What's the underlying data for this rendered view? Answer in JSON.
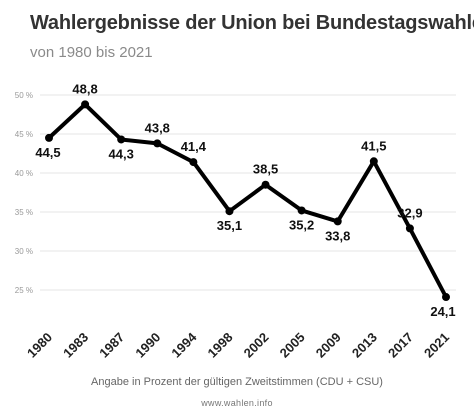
{
  "chart_data": {
    "type": "line",
    "title": "Wahlergebnisse der Union bei Bundestagswahlen",
    "subtitle": "von 1980 bis 2021",
    "categories": [
      "1980",
      "1983",
      "1987",
      "1990",
      "1994",
      "1998",
      "2002",
      "2005",
      "2009",
      "2013",
      "2017",
      "2021"
    ],
    "values": [
      44.5,
      48.8,
      44.3,
      43.8,
      41.4,
      35.1,
      38.5,
      35.2,
      33.8,
      41.5,
      32.9,
      24.1
    ],
    "data_labels": [
      "44,5",
      "48,8",
      "44,3",
      "43,8",
      "41,4",
      "35,1",
      "38,5",
      "35,2",
      "33,8",
      "41,5",
      "32,9",
      "24,1"
    ],
    "yticks": [
      25,
      30,
      35,
      40,
      45,
      50
    ],
    "ytick_labels": [
      "25 %",
      "30 %",
      "35 %",
      "40 %",
      "45 %",
      "50 %"
    ],
    "ylim": [
      23,
      50.5
    ],
    "grid": true,
    "line_color": "#000000",
    "footnote": "Angabe in Prozent der gültigen Zweitstimmen (CDU + CSU)",
    "source": "www.wahlen.info"
  }
}
